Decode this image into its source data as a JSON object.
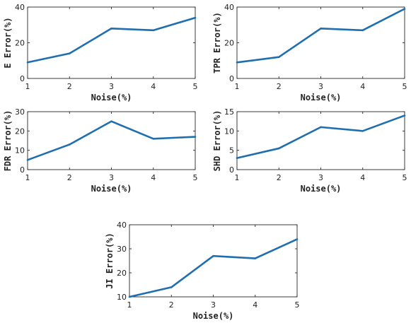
{
  "chart_data": [
    {
      "type": "line",
      "x": [
        1,
        2,
        3,
        4,
        5
      ],
      "xticks": [
        1,
        2,
        3,
        4,
        5
      ],
      "xlim": [
        1,
        5
      ],
      "ylim": [
        0,
        40
      ],
      "yticks": [
        0,
        20,
        40
      ],
      "xlabel": "Noise(%)",
      "ylabel": "E Error(%)",
      "series": [
        {
          "values": [
            9,
            14,
            28,
            27,
            34
          ]
        }
      ],
      "color": "#1f6fb0"
    },
    {
      "type": "line",
      "x": [
        1,
        2,
        3,
        4,
        5
      ],
      "xticks": [
        1,
        2,
        3,
        4,
        5
      ],
      "xlim": [
        1,
        5
      ],
      "ylim": [
        0,
        40
      ],
      "yticks": [
        0,
        20,
        40
      ],
      "xlabel": "Noise(%)",
      "ylabel": "TPR Error(%)",
      "series": [
        {
          "values": [
            9,
            12,
            28,
            27,
            39
          ]
        }
      ],
      "color": "#1f6fb0"
    },
    {
      "type": "line",
      "x": [
        1,
        2,
        3,
        4,
        5
      ],
      "xticks": [
        1,
        2,
        3,
        4,
        5
      ],
      "xlim": [
        1,
        5
      ],
      "ylim": [
        0,
        30
      ],
      "yticks": [
        0,
        10,
        20,
        30
      ],
      "xlabel": "Noise(%)",
      "ylabel": "FDR Error(%)",
      "series": [
        {
          "values": [
            5,
            13,
            25,
            16,
            17
          ]
        }
      ],
      "color": "#1f6fb0"
    },
    {
      "type": "line",
      "x": [
        1,
        2,
        3,
        4,
        5
      ],
      "xticks": [
        1,
        2,
        3,
        4,
        5
      ],
      "xlim": [
        1,
        5
      ],
      "ylim": [
        0,
        15
      ],
      "yticks": [
        0,
        5,
        10,
        15
      ],
      "xlabel": "Noise(%)",
      "ylabel": "SHD Error(%)",
      "series": [
        {
          "values": [
            3,
            5.5,
            11,
            10,
            14
          ]
        }
      ],
      "color": "#1f6fb0"
    },
    {
      "type": "line",
      "x": [
        1,
        2,
        3,
        4,
        5
      ],
      "xticks": [
        1,
        2,
        3,
        4,
        5
      ],
      "xlim": [
        1,
        5
      ],
      "ylim": [
        10,
        40
      ],
      "yticks": [
        10,
        20,
        30,
        40
      ],
      "xlabel": "Noise(%)",
      "ylabel": "JI Error(%)",
      "series": [
        {
          "values": [
            10,
            14,
            27,
            26,
            34
          ]
        }
      ],
      "color": "#1f6fb0"
    }
  ]
}
